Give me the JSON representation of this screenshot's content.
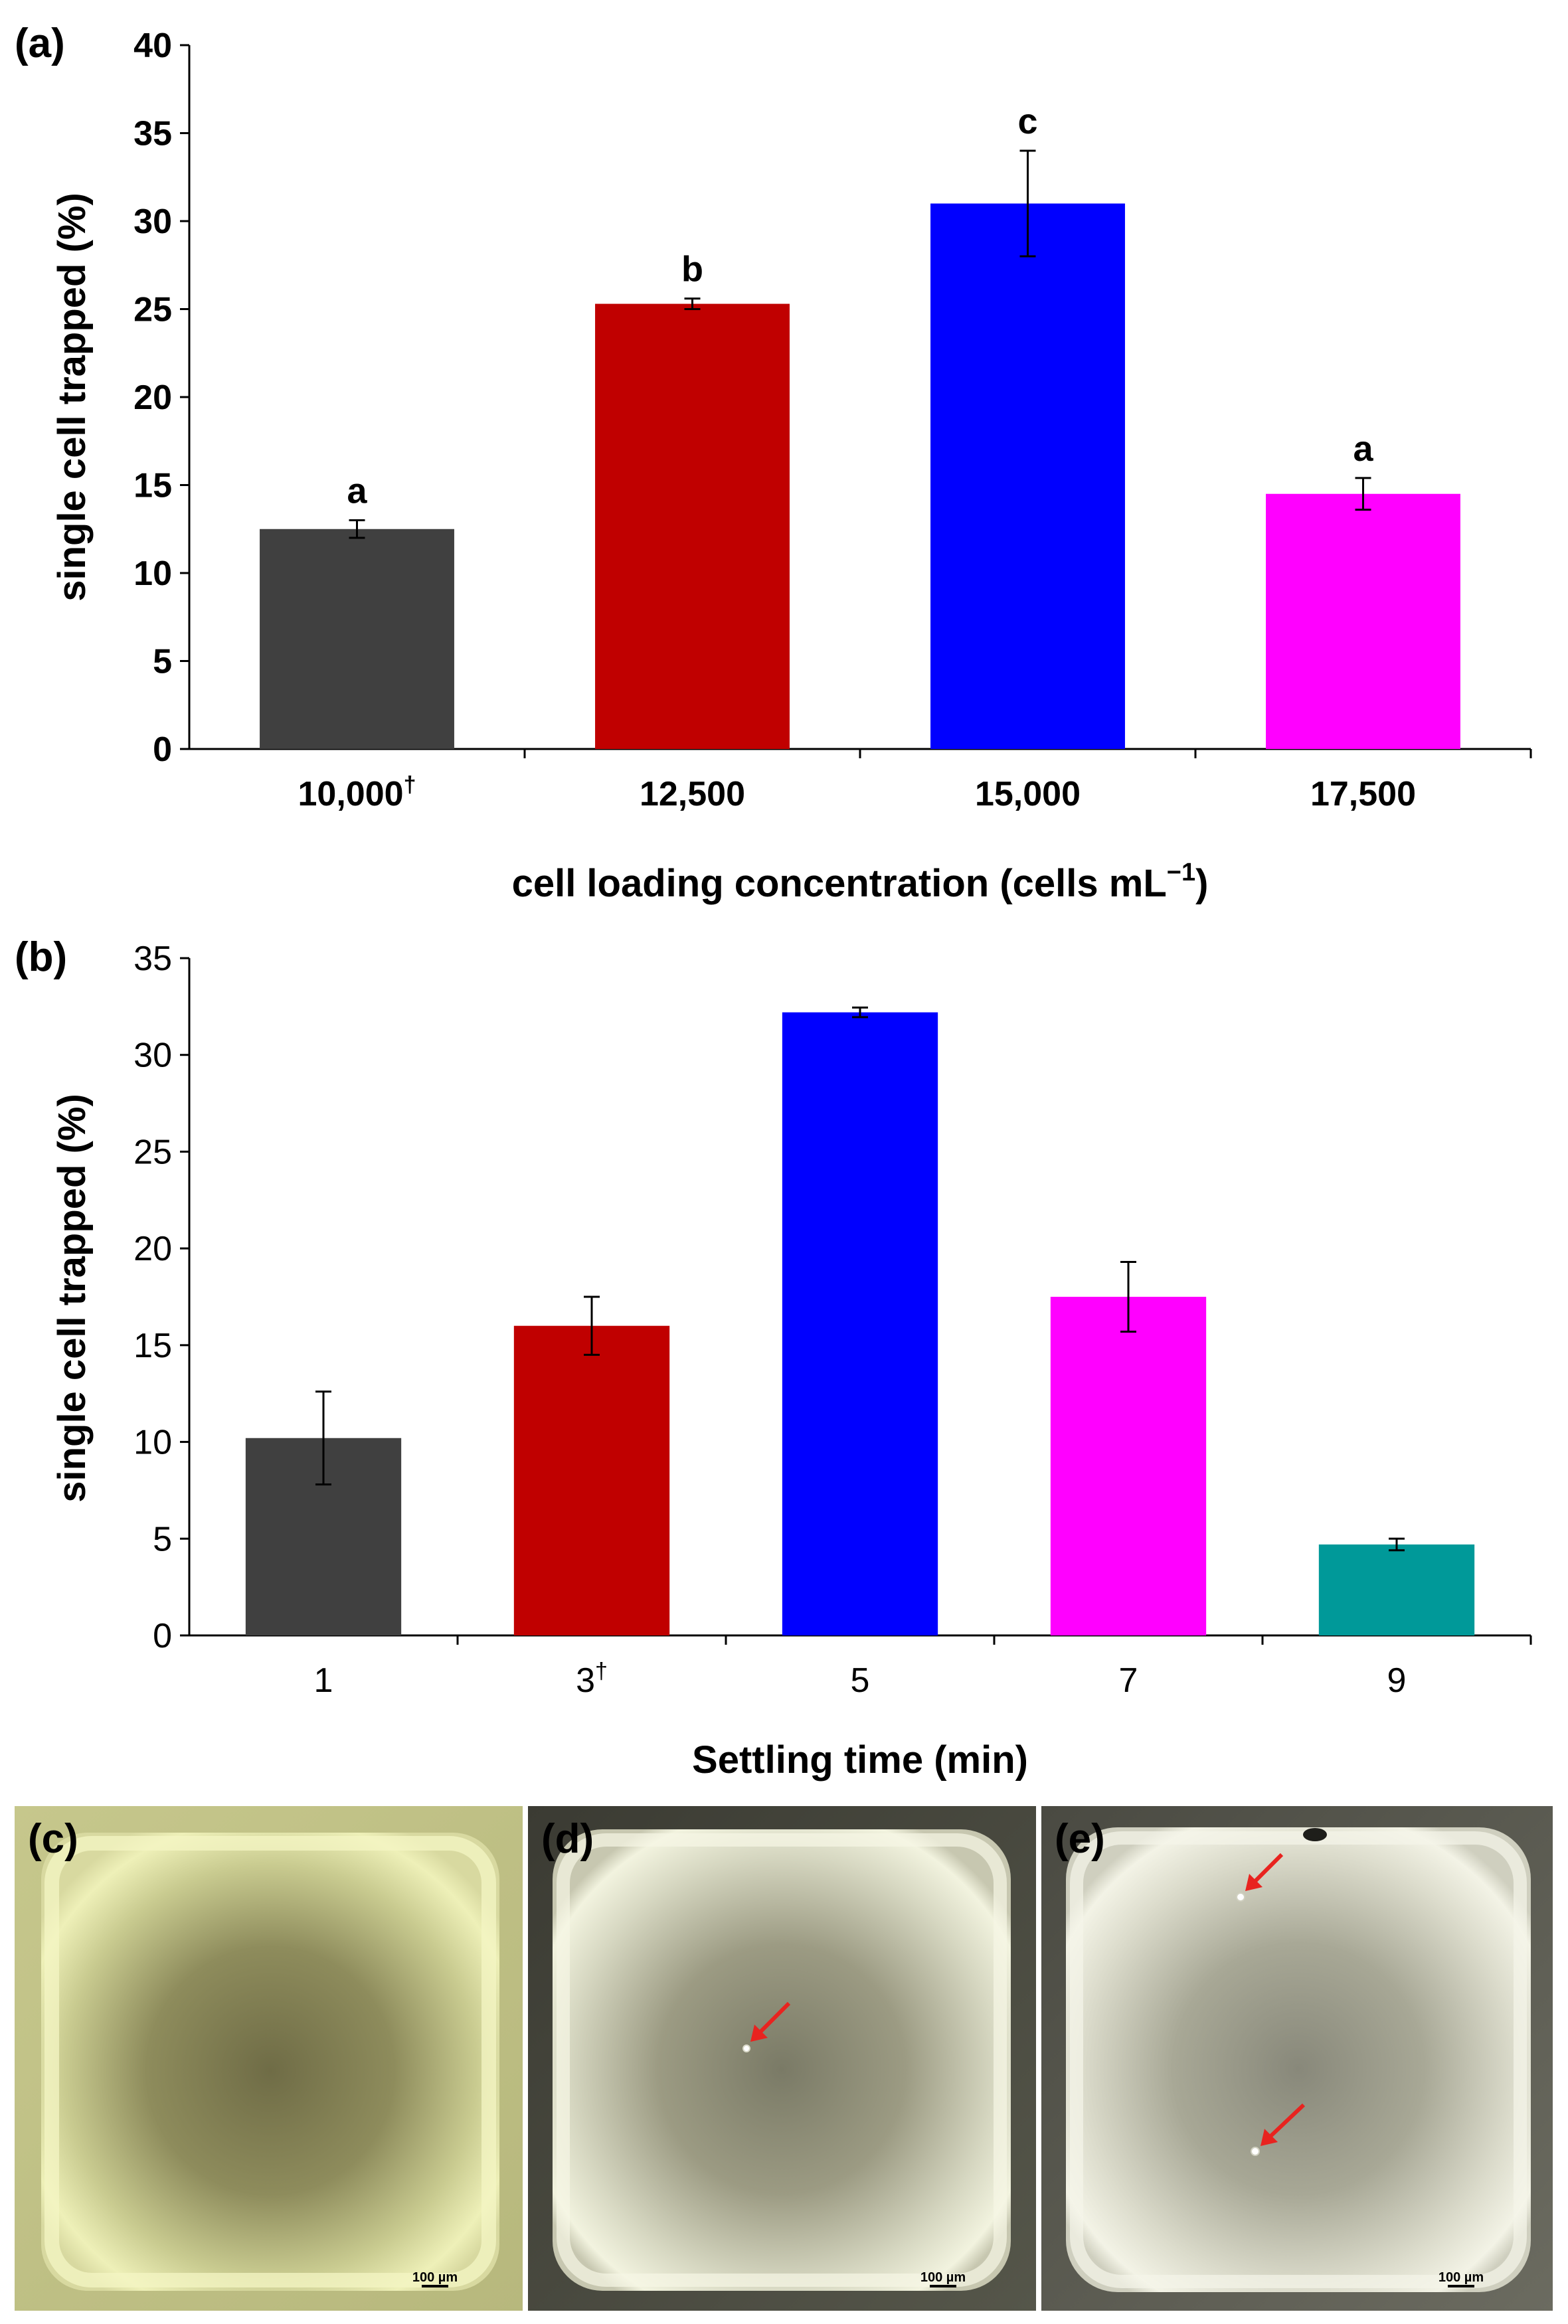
{
  "chart_data": [
    {
      "panel": "(a)",
      "type": "bar",
      "categories": [
        "10,000",
        "12,500",
        "15,000",
        "17,500"
      ],
      "category_marks": [
        "†",
        "",
        "",
        ""
      ],
      "values": [
        12.5,
        25.3,
        31.0,
        14.5
      ],
      "errors": [
        0.5,
        0.3,
        3.0,
        0.9
      ],
      "significance": [
        "a",
        "b",
        "c",
        "a"
      ],
      "colors": [
        "#404040",
        "#c00000",
        "#0000ff",
        "#ff00ff"
      ],
      "ylim": [
        0,
        40
      ],
      "yticks": [
        0,
        5,
        10,
        15,
        20,
        25,
        30,
        35,
        40
      ],
      "ylabel": "single cell trapped (%)",
      "xlabel": "cell loading concentration (cells mL",
      "xlabel_sup": "−1",
      "xlabel_end": ")"
    },
    {
      "panel": "(b)",
      "type": "bar",
      "categories": [
        "1",
        "3",
        "5",
        "7",
        "9"
      ],
      "category_marks": [
        "",
        "†",
        "",
        "",
        ""
      ],
      "values": [
        10.2,
        16.0,
        32.2,
        17.5,
        4.7
      ],
      "errors": [
        2.4,
        1.5,
        0.25,
        1.8,
        0.3
      ],
      "colors": [
        "#404040",
        "#c00000",
        "#0000ff",
        "#ff00ff",
        "#009999"
      ],
      "ylim": [
        0,
        35
      ],
      "yticks": [
        0,
        5,
        10,
        15,
        20,
        25,
        30,
        35
      ],
      "ylabel": "single cell trapped (%)",
      "xlabel": "Settling time (min)"
    }
  ],
  "micrographs": [
    {
      "label": "(c)",
      "scale_bar": "100 µm"
    },
    {
      "label": "(d)",
      "scale_bar": "100 µm"
    },
    {
      "label": "(e)",
      "scale_bar": "100 µm"
    }
  ]
}
